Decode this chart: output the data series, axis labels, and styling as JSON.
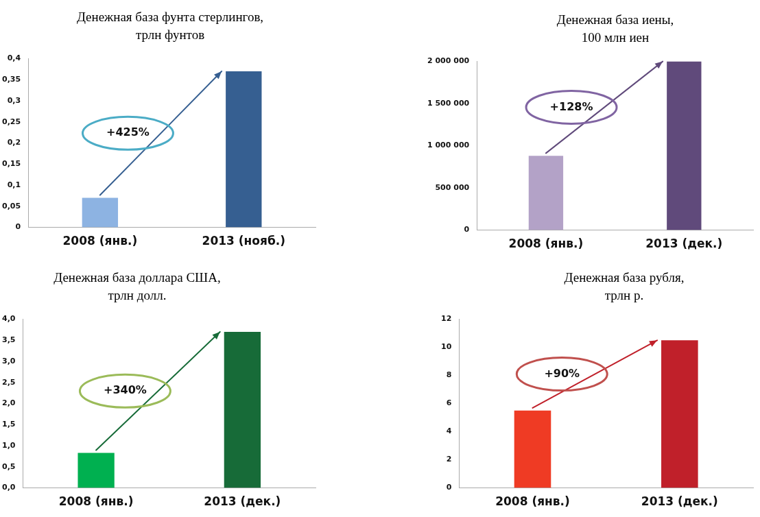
{
  "chart_data": [
    {
      "type": "bar",
      "title": "Денежная база фунта стерлингов, трлн фунтов",
      "categories": [
        "2008 (янв.)",
        "2013 (нояб.)"
      ],
      "values": [
        0.07,
        0.37
      ],
      "colors": [
        "#8db3e2",
        "#365f91"
      ],
      "ylim": [
        0,
        0.4
      ],
      "yticks": [
        0,
        {
          "value": 0.05,
          "label": "0,05"
        },
        {
          "value": 0.1,
          "label": "0,1"
        },
        {
          "value": 0.15,
          "label": "0,15"
        },
        {
          "value": 0.2,
          "label": "0,2"
        },
        {
          "value": 0.25,
          "label": "0,25"
        },
        {
          "value": 0.3,
          "label": "0,3"
        },
        {
          "value": 0.35,
          "label": "0,35"
        },
        {
          "value": 0.4,
          "label": "0,4"
        }
      ],
      "annotations": [
        "+425%"
      ],
      "grid": false,
      "legend": false
    },
    {
      "type": "bar",
      "title": "Денежная база иены, 100 млн иен",
      "categories": [
        "2008 (янв.)",
        "2013 (дек.)"
      ],
      "values": [
        880000,
        2000000
      ],
      "colors": [
        "#b3a2c7",
        "#604a7b"
      ],
      "ylim": [
        0,
        2000000
      ],
      "yticks": [
        0,
        {
          "value": 500000,
          "label": "500 000"
        },
        {
          "value": 1000000,
          "label": "1 000 000"
        },
        {
          "value": 1500000,
          "label": "1 500 000"
        },
        {
          "value": 2000000,
          "label": "2 000 000"
        }
      ],
      "annotations": [
        "+128%"
      ],
      "grid": false,
      "legend": false
    },
    {
      "type": "bar",
      "title": "Денежная база доллара США, трлн долл.",
      "categories": [
        "2008 (янв.)",
        "2013 (дек.)"
      ],
      "values": [
        0.83,
        3.7
      ],
      "colors": [
        "#00b050",
        "#176b38"
      ],
      "ylim": [
        0,
        4
      ],
      "yticks": [
        {
          "value": 0,
          "label": "0,0"
        },
        {
          "value": 0.5,
          "label": "0,5"
        },
        {
          "value": 1,
          "label": "1,0"
        },
        {
          "value": 1.5,
          "label": "1,5"
        },
        {
          "value": 2,
          "label": "2,0"
        },
        {
          "value": 2.5,
          "label": "2,5"
        },
        {
          "value": 3,
          "label": "3,0"
        },
        {
          "value": 3.5,
          "label": "3,5"
        },
        {
          "value": 4,
          "label": "4,0"
        }
      ],
      "annotations": [
        "+340%"
      ],
      "grid": false,
      "legend": false
    },
    {
      "type": "bar",
      "title": "Денежная база рубля, трлн р.",
      "categories": [
        "2008 (янв.)",
        "2013 (дек.)"
      ],
      "values": [
        5.5,
        10.5
      ],
      "colors": [
        "#ef3b24",
        "#c0202a"
      ],
      "ylim": [
        0,
        12
      ],
      "yticks": [
        0,
        2,
        4,
        6,
        8,
        10,
        12
      ],
      "annotations": [
        "+90%"
      ],
      "grid": false,
      "legend": false
    }
  ]
}
